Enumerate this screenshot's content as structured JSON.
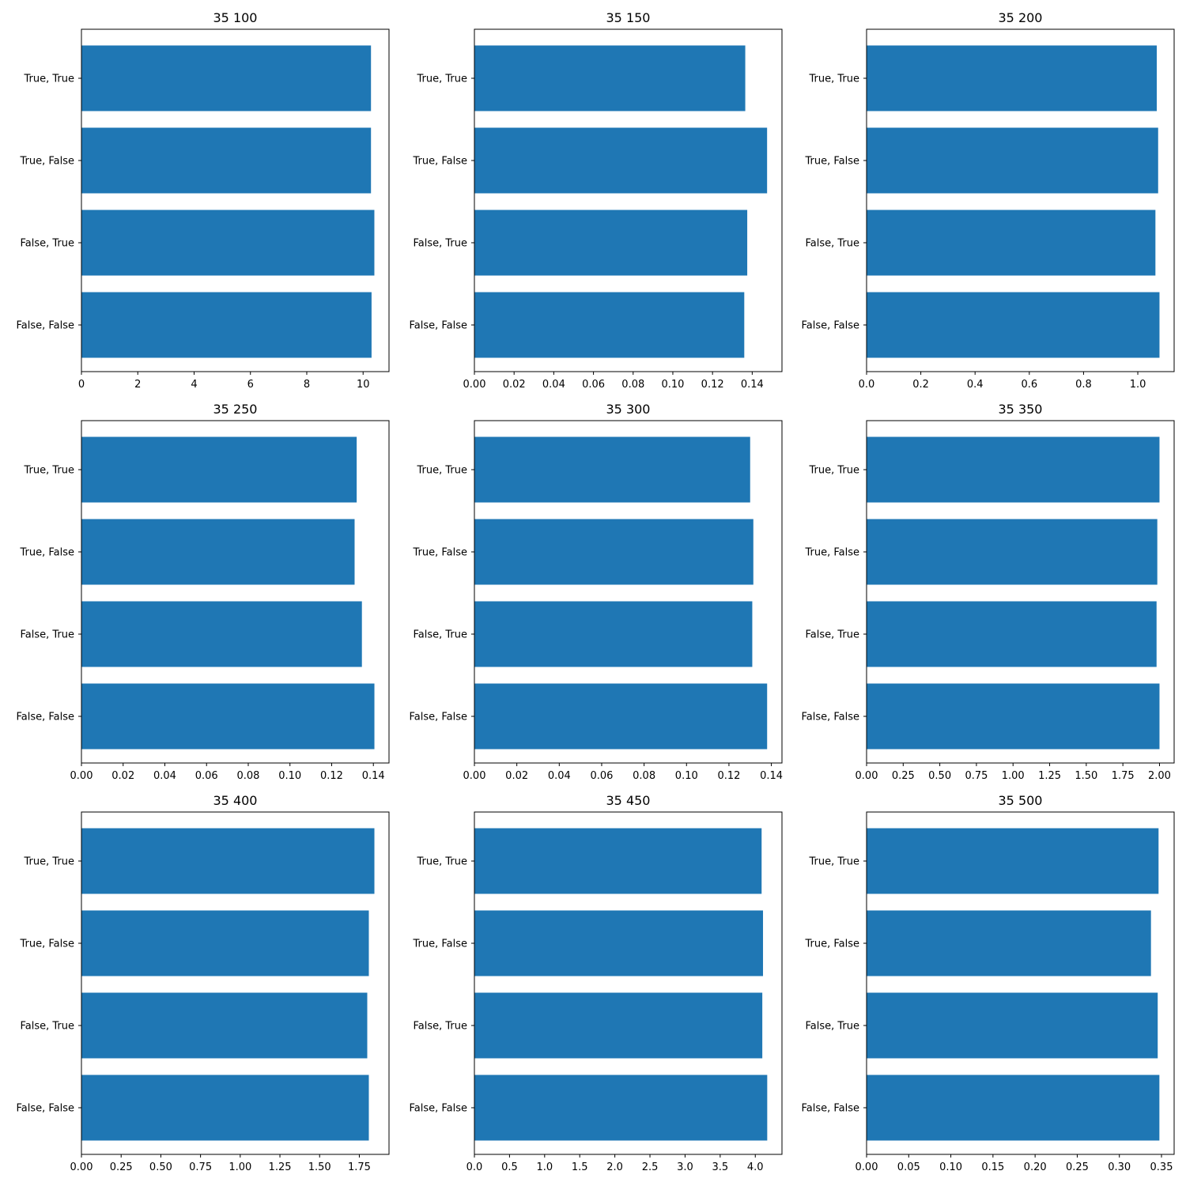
{
  "chart_data": [
    {
      "type": "bar",
      "orientation": "horizontal",
      "title": "35 100",
      "categories": [
        "False, False",
        "False, True",
        "True, False",
        "True, True"
      ],
      "values": [
        10.3,
        10.4,
        10.28,
        10.28
      ],
      "xlim": [
        0,
        10.92
      ],
      "xticks": [
        0,
        2,
        4,
        6,
        8,
        10
      ],
      "xtick_labels": [
        "0",
        "2",
        "4",
        "6",
        "8",
        "10"
      ]
    },
    {
      "type": "bar",
      "orientation": "horizontal",
      "title": "35 150",
      "categories": [
        "False, False",
        "False, True",
        "True, False",
        "True, True"
      ],
      "values": [
        0.136,
        0.1375,
        0.1475,
        0.1365
      ],
      "xlim": [
        0,
        0.155
      ],
      "xticks": [
        0,
        0.02,
        0.04,
        0.06,
        0.08,
        0.1,
        0.12,
        0.14
      ],
      "xtick_labels": [
        "0.00",
        "0.02",
        "0.04",
        "0.06",
        "0.08",
        "0.10",
        "0.12",
        "0.14"
      ]
    },
    {
      "type": "bar",
      "orientation": "horizontal",
      "title": "35 200",
      "categories": [
        "False, False",
        "False, True",
        "True, False",
        "True, True"
      ],
      "values": [
        1.08,
        1.065,
        1.075,
        1.07
      ],
      "xlim": [
        0,
        1.134
      ],
      "xticks": [
        0,
        0.2,
        0.4,
        0.6,
        0.8,
        1.0
      ],
      "xtick_labels": [
        "0.0",
        "0.2",
        "0.4",
        "0.6",
        "0.8",
        "1.0"
      ]
    },
    {
      "type": "bar",
      "orientation": "horizontal",
      "title": "35 250",
      "categories": [
        "False, False",
        "False, True",
        "True, False",
        "True, True"
      ],
      "values": [
        0.1405,
        0.1345,
        0.131,
        0.132
      ],
      "xlim": [
        0,
        0.1475
      ],
      "xticks": [
        0,
        0.02,
        0.04,
        0.06,
        0.08,
        0.1,
        0.12,
        0.14
      ],
      "xtick_labels": [
        "0.00",
        "0.02",
        "0.04",
        "0.06",
        "0.08",
        "0.10",
        "0.12",
        "0.14"
      ]
    },
    {
      "type": "bar",
      "orientation": "horizontal",
      "title": "35 300",
      "categories": [
        "False, False",
        "False, True",
        "True, False",
        "True, True"
      ],
      "values": [
        0.138,
        0.131,
        0.1315,
        0.13
      ],
      "xlim": [
        0,
        0.145
      ],
      "xticks": [
        0,
        0.02,
        0.04,
        0.06,
        0.08,
        0.1,
        0.12,
        0.14
      ],
      "xtick_labels": [
        "0.00",
        "0.02",
        "0.04",
        "0.06",
        "0.08",
        "0.10",
        "0.12",
        "0.14"
      ]
    },
    {
      "type": "bar",
      "orientation": "horizontal",
      "title": "35 350",
      "categories": [
        "False, False",
        "False, True",
        "True, False",
        "True, True"
      ],
      "values": [
        2.0,
        1.98,
        1.985,
        2.0
      ],
      "xlim": [
        0,
        2.1
      ],
      "xticks": [
        0,
        0.25,
        0.5,
        0.75,
        1.0,
        1.25,
        1.5,
        1.75,
        2.0
      ],
      "xtick_labels": [
        "0.00",
        "0.25",
        "0.50",
        "0.75",
        "1.00",
        "1.25",
        "1.50",
        "1.75",
        "2.00"
      ]
    },
    {
      "type": "bar",
      "orientation": "horizontal",
      "title": "35 400",
      "categories": [
        "False, False",
        "False, True",
        "True, False",
        "True, True"
      ],
      "values": [
        1.81,
        1.8,
        1.81,
        1.845
      ],
      "xlim": [
        0,
        1.937
      ],
      "xticks": [
        0,
        0.25,
        0.5,
        0.75,
        1.0,
        1.25,
        1.5,
        1.75
      ],
      "xtick_labels": [
        "0.00",
        "0.25",
        "0.50",
        "0.75",
        "1.00",
        "1.25",
        "1.50",
        "1.75"
      ]
    },
    {
      "type": "bar",
      "orientation": "horizontal",
      "title": "35 450",
      "categories": [
        "False, False",
        "False, True",
        "True, False",
        "True, True"
      ],
      "values": [
        4.17,
        4.1,
        4.11,
        4.09
      ],
      "xlim": [
        0,
        4.38
      ],
      "xticks": [
        0,
        0.5,
        1.0,
        1.5,
        2.0,
        2.5,
        3.0,
        3.5,
        4.0
      ],
      "xtick_labels": [
        "0.0",
        "0.5",
        "1.0",
        "1.5",
        "2.0",
        "2.5",
        "3.0",
        "3.5",
        "4.0"
      ]
    },
    {
      "type": "bar",
      "orientation": "horizontal",
      "title": "35 500",
      "categories": [
        "False, False",
        "False, True",
        "True, False",
        "True, True"
      ],
      "values": [
        0.3475,
        0.3455,
        0.3375,
        0.3465
      ],
      "xlim": [
        0,
        0.365
      ],
      "xticks": [
        0,
        0.05,
        0.1,
        0.15,
        0.2,
        0.25,
        0.3,
        0.35
      ],
      "xtick_labels": [
        "0.00",
        "0.05",
        "0.10",
        "0.15",
        "0.20",
        "0.25",
        "0.30",
        "0.35"
      ]
    }
  ],
  "colors": {
    "bar": "#1f77b4",
    "axis": "#000000",
    "background": "#ffffff"
  }
}
